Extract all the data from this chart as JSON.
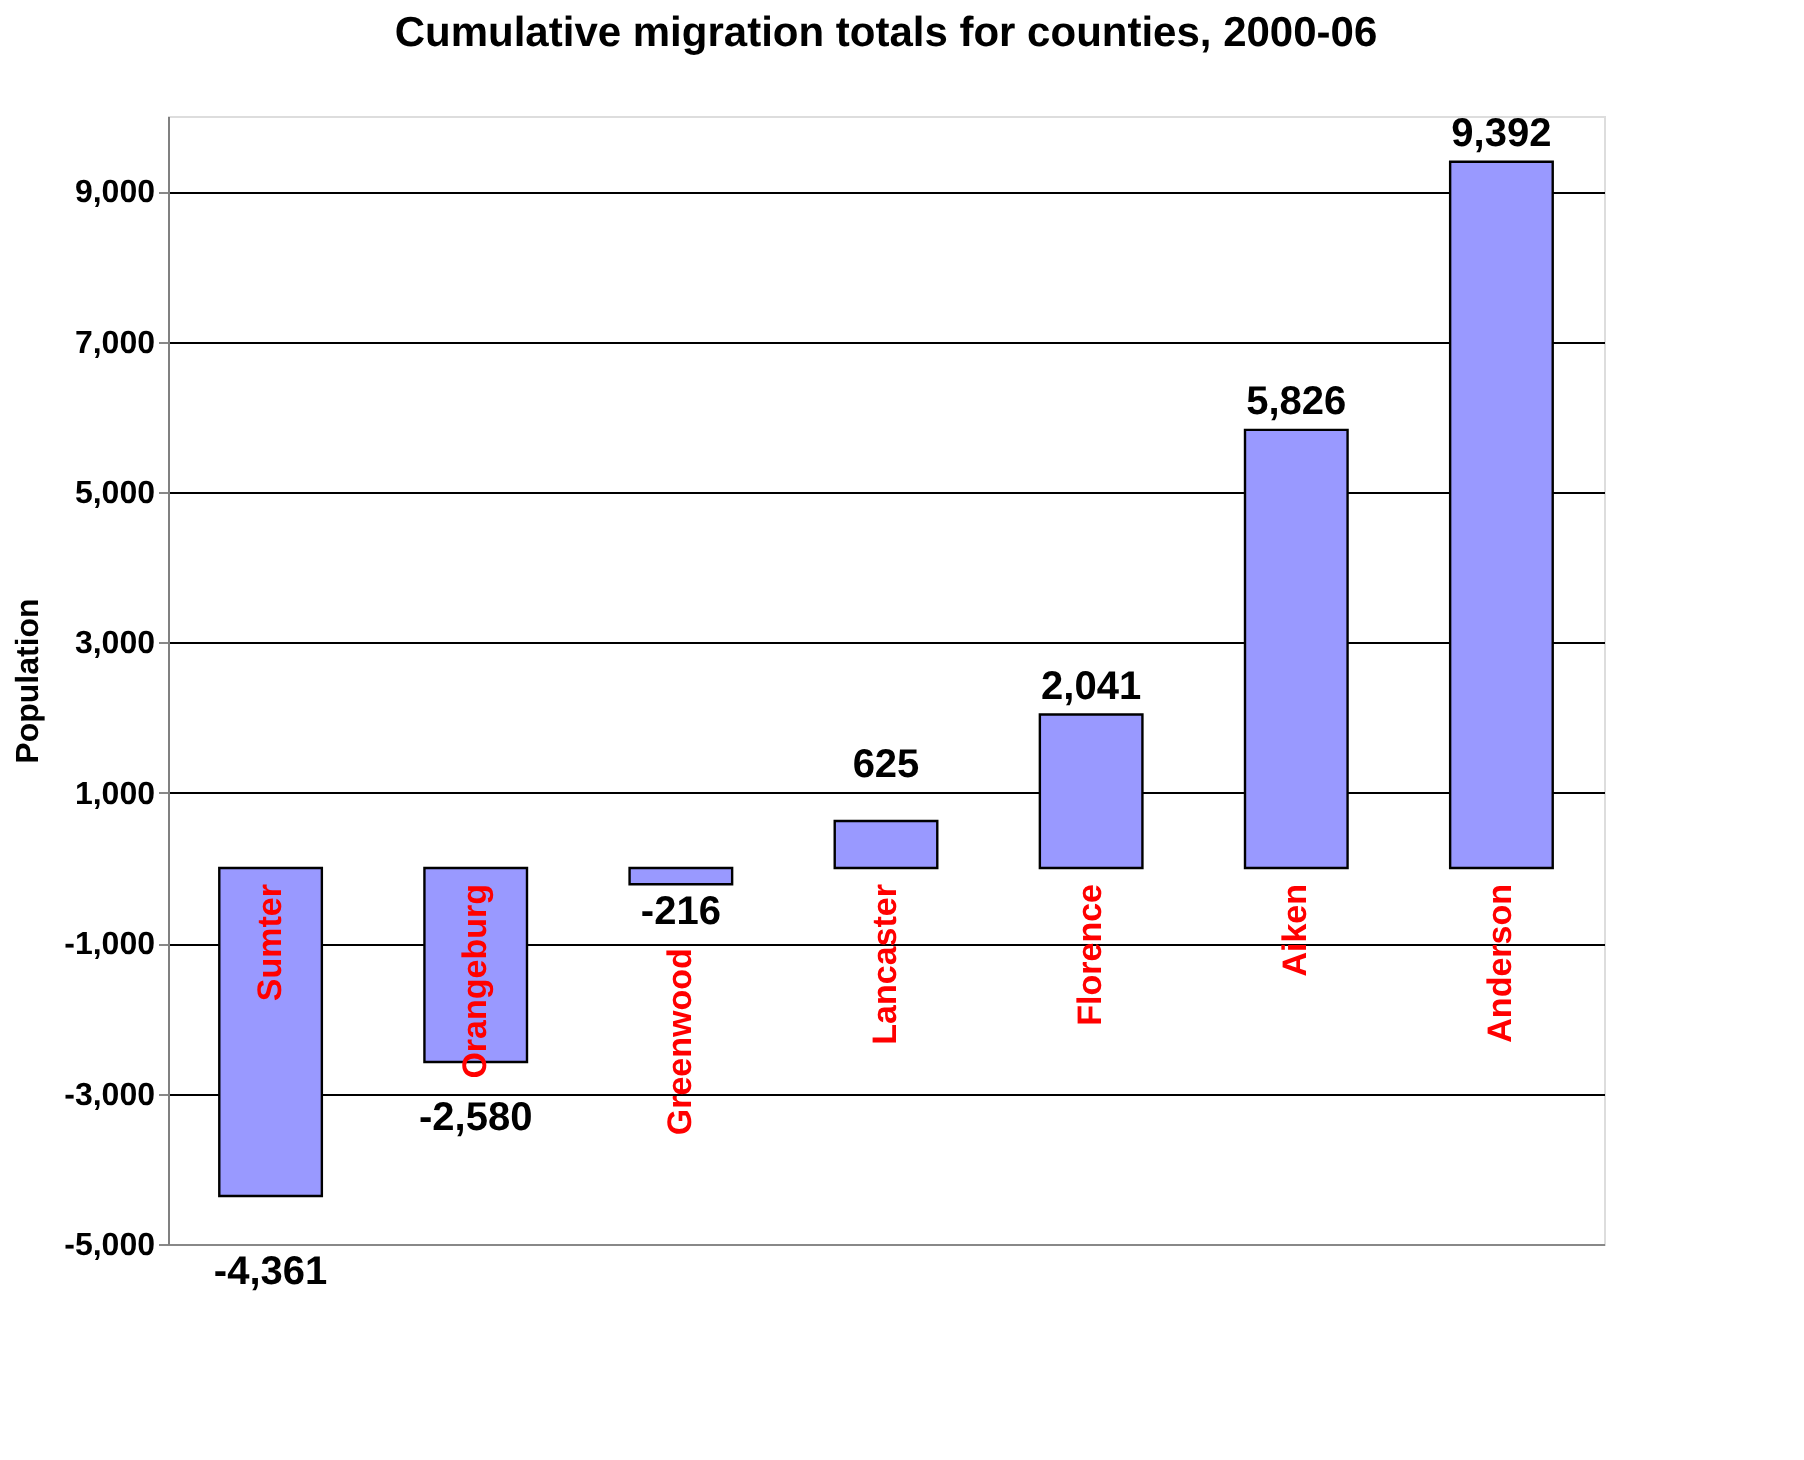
{
  "chart_data": {
    "type": "bar",
    "title": "Cumulative migration totals for counties, 2000-06",
    "ylabel": "Population",
    "categories": [
      "Sumter",
      "Orangeburg",
      "Greenwood",
      "Lancaster",
      "Florence",
      "Aiken",
      "Anderson"
    ],
    "values": [
      -4361,
      -2580,
      -216,
      625,
      2041,
      5826,
      9392
    ],
    "value_labels": [
      "-4,361",
      "-2,580",
      "-216",
      "625",
      "2,041",
      "5,826",
      "9,392"
    ],
    "color": "#9999ff",
    "ylim": [
      -5000,
      10000
    ],
    "yticks": [
      {
        "value": -5000,
        "label": "-5,000"
      },
      {
        "value": -3000,
        "label": "-3,000"
      },
      {
        "value": -1000,
        "label": "-1,000"
      },
      {
        "value": 1000,
        "label": "1,000"
      },
      {
        "value": 3000,
        "label": "3,000"
      },
      {
        "value": 5000,
        "label": "5,000"
      },
      {
        "value": 7000,
        "label": "7,000"
      },
      {
        "value": 9000,
        "label": "9,000"
      }
    ],
    "grid": "y"
  }
}
